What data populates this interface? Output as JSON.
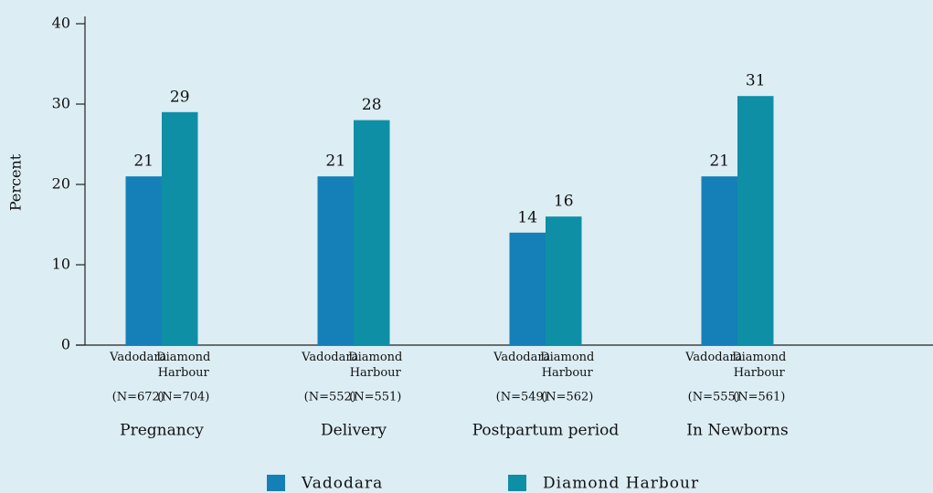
{
  "chart_data": {
    "type": "bar",
    "y_label": "Percent",
    "categories": [
      "Pregnancy",
      "Delivery",
      "Postpartum period",
      "In Newborns"
    ],
    "series": [
      {
        "name": "Vadodara",
        "color": "#1580b8",
        "values": [
          21,
          21,
          14,
          21
        ],
        "sample_sizes": [
          "(N=672)",
          "(N=552)",
          "(N=549)",
          "(N=555)"
        ]
      },
      {
        "name": "Diamond Harbour",
        "color": "#0e8fa6",
        "values": [
          29,
          28,
          16,
          31
        ],
        "sample_sizes": [
          "(N=704)",
          "(N=551)",
          "(N=562)",
          "(N=561)"
        ]
      }
    ],
    "ylim": [
      0,
      40
    ],
    "yticks": [
      0,
      10,
      20,
      30,
      40
    ],
    "legend": "bottom"
  }
}
